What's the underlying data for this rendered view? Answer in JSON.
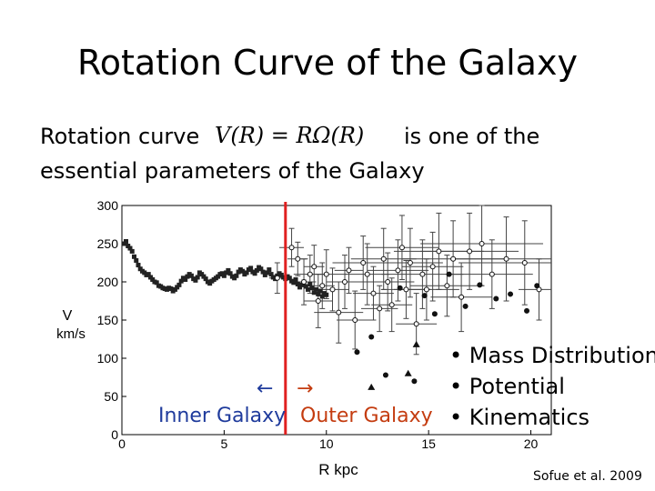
{
  "slide": {
    "title": "Rotation Curve of the Galaxy",
    "text_pre": "Rotation curve",
    "formula": "V(R) = RΩ(R)",
    "text_post": "is one of the",
    "text_line2": "essential parameters of the Galaxy"
  },
  "annotations": {
    "arrow_left": "←",
    "arrow_right": "→",
    "inner_label": "Inner Galaxy",
    "outer_label": "Outer Galaxy",
    "bullets": [
      "• Mass Distribution",
      "• Potential",
      "• Kinematics"
    ],
    "citation": "Sofue et al. 2009"
  },
  "colors": {
    "inner": "#1f3b9c",
    "outer": "#c43c10",
    "divider": "#e02020"
  },
  "chart_data": {
    "type": "scatter",
    "title": "",
    "xlabel": "R kpc",
    "ylabel": "V km/s",
    "xlim": [
      0,
      21
    ],
    "ylim": [
      0,
      300
    ],
    "xticks": [
      0,
      5,
      10,
      15,
      20
    ],
    "yticks": [
      0,
      50,
      100,
      150,
      200,
      250,
      300
    ],
    "divider_x": 8.0,
    "grid": false,
    "series": [
      {
        "marker": "point",
        "x": [
          0.1,
          0.2,
          0.3,
          0.4,
          0.5,
          0.6,
          0.7,
          0.8,
          0.9,
          1.0,
          1.1,
          1.2,
          1.3,
          1.4,
          1.5,
          1.6,
          1.7,
          1.8,
          1.9,
          2.0,
          2.1,
          2.2,
          2.3,
          2.4,
          2.5,
          2.6,
          2.7,
          2.8,
          2.9,
          3.0,
          3.1,
          3.2,
          3.3,
          3.4,
          3.5,
          3.6,
          3.7,
          3.8,
          3.9,
          4.0,
          4.1,
          4.2,
          4.3,
          4.4,
          4.5,
          4.6,
          4.7,
          4.8,
          4.9,
          5.0,
          5.1,
          5.2,
          5.3,
          5.4,
          5.5,
          5.6,
          5.7,
          5.8,
          5.9,
          6.0,
          6.1,
          6.2,
          6.3,
          6.4,
          6.5,
          6.6,
          6.7,
          6.8,
          6.9,
          7.0,
          7.1,
          7.2,
          7.3,
          7.4,
          7.5,
          7.6,
          7.7,
          7.8,
          7.9,
          8.0,
          8.1,
          8.2,
          8.3,
          8.4,
          8.5,
          8.6,
          8.7,
          8.8,
          8.9,
          9.0,
          9.1,
          9.2,
          9.3,
          9.4,
          9.5,
          9.6,
          9.7,
          9.8,
          9.9,
          10.0
        ],
        "y": [
          250,
          253,
          247,
          244,
          240,
          233,
          228,
          222,
          217,
          214,
          212,
          209,
          210,
          206,
          203,
          200,
          199,
          195,
          194,
          192,
          191,
          190,
          192,
          191,
          188,
          190,
          193,
          196,
          201,
          205,
          203,
          207,
          210,
          208,
          204,
          202,
          206,
          212,
          210,
          207,
          204,
          200,
          198,
          201,
          203,
          205,
          207,
          210,
          211,
          208,
          212,
          215,
          211,
          207,
          205,
          208,
          213,
          216,
          214,
          210,
          212,
          216,
          218,
          213,
          211,
          215,
          219,
          217,
          213,
          209,
          212,
          216,
          210,
          206,
          204,
          208,
          211,
          209,
          206,
          204,
          207,
          205,
          201,
          199,
          203,
          197,
          193,
          196,
          200,
          194,
          190,
          197,
          192,
          186,
          190,
          184,
          188,
          181,
          185,
          183
        ]
      },
      {
        "marker": "errorbar",
        "x": [
          7.6,
          8.3,
          8.6,
          8.9,
          9.2,
          9.4,
          9.6,
          9.8,
          10.0,
          10.3,
          10.6,
          10.9,
          11.1,
          11.4,
          11.8,
          12.0,
          12.3,
          12.6,
          12.8,
          13.0,
          13.2,
          13.5,
          13.7,
          13.9,
          14.1,
          14.4,
          14.7,
          14.9,
          15.2,
          15.5,
          15.9,
          16.2,
          16.6,
          17.0,
          17.6,
          18.1,
          18.8,
          19.7,
          20.4
        ],
        "y": [
          205,
          245,
          230,
          200,
          210,
          220,
          175,
          195,
          210,
          190,
          160,
          200,
          215,
          150,
          225,
          210,
          185,
          165,
          230,
          200,
          170,
          215,
          245,
          190,
          225,
          145,
          210,
          190,
          220,
          240,
          195,
          230,
          180,
          240,
          250,
          210,
          230,
          225,
          190
        ],
        "xerr": [
          0.4,
          0.6,
          0.5,
          0.6,
          0.8,
          0.5,
          0.7,
          0.6,
          1.0,
          0.8,
          1.2,
          0.9,
          0.7,
          0.9,
          1.5,
          1.1,
          1.0,
          0.9,
          1.6,
          1.3,
          1.0,
          1.5,
          1.8,
          1.2,
          1.6,
          1.0,
          2.0,
          1.6,
          1.5,
          2.2,
          1.8,
          2.5,
          1.5,
          2.4,
          3.0,
          2.0,
          2.6,
          3.2,
          1.0
        ],
        "yerr": [
          20,
          25,
          22,
          30,
          25,
          28,
          35,
          30,
          32,
          28,
          40,
          35,
          30,
          38,
          35,
          40,
          35,
          30,
          40,
          38,
          35,
          40,
          42,
          38,
          45,
          40,
          45,
          40,
          45,
          50,
          40,
          50,
          45,
          50,
          55,
          45,
          55,
          55,
          40
        ]
      },
      {
        "marker": "dot",
        "x": [
          11.5,
          12.2,
          12.9,
          13.6,
          14.3,
          14.8,
          15.3,
          16.0,
          16.8,
          17.5,
          18.3,
          19.0,
          19.8,
          20.3
        ],
        "y": [
          108,
          128,
          78,
          192,
          70,
          182,
          158,
          210,
          168,
          196,
          178,
          184,
          162,
          195
        ]
      },
      {
        "marker": "triangle",
        "x": [
          12.2,
          14.0,
          14.4
        ],
        "y": [
          62,
          80,
          118
        ]
      }
    ]
  }
}
